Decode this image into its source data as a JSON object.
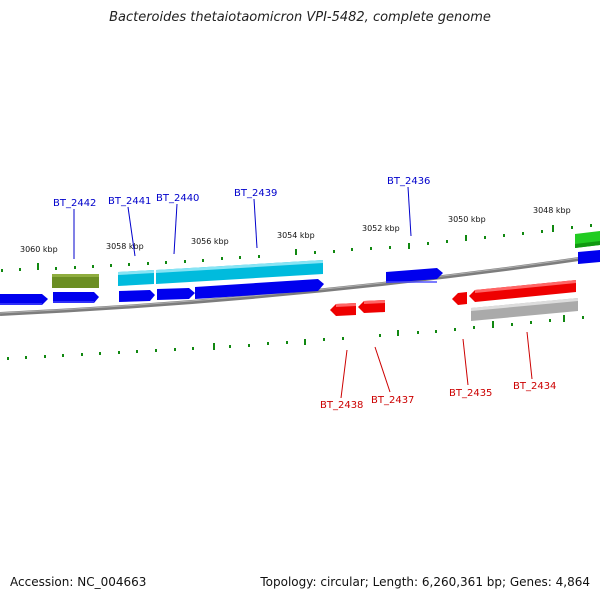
{
  "title": "Bacteroides thetaiotaomicron VPI-5482, complete genome",
  "footer": {
    "accession": "Accession: NC_004663",
    "stats": "Topology: circular; Length: 6,260,361 bp; Genes: 4,864"
  },
  "colors": {
    "forward_gene": "#0000ee",
    "reverse_gene": "#ee0000",
    "cyan_feature": "#00bbdd",
    "olive_feature": "#6b8e23",
    "green_feature": "#22cc22",
    "gray_feature": "#aaaaaa",
    "backbone": "#808080",
    "ticks": "#007700"
  },
  "kbp_labels": [
    "3060 kbp",
    "3058 kbp",
    "3056 kbp",
    "3054 kbp",
    "3052 kbp",
    "3050 kbp",
    "3048 kbp"
  ],
  "forward_labels": [
    "BT_2442",
    "BT_2441",
    "BT_2440",
    "BT_2439",
    "BT_2436"
  ],
  "reverse_labels": [
    "BT_2438",
    "BT_2437",
    "BT_2435",
    "BT_2434"
  ]
}
